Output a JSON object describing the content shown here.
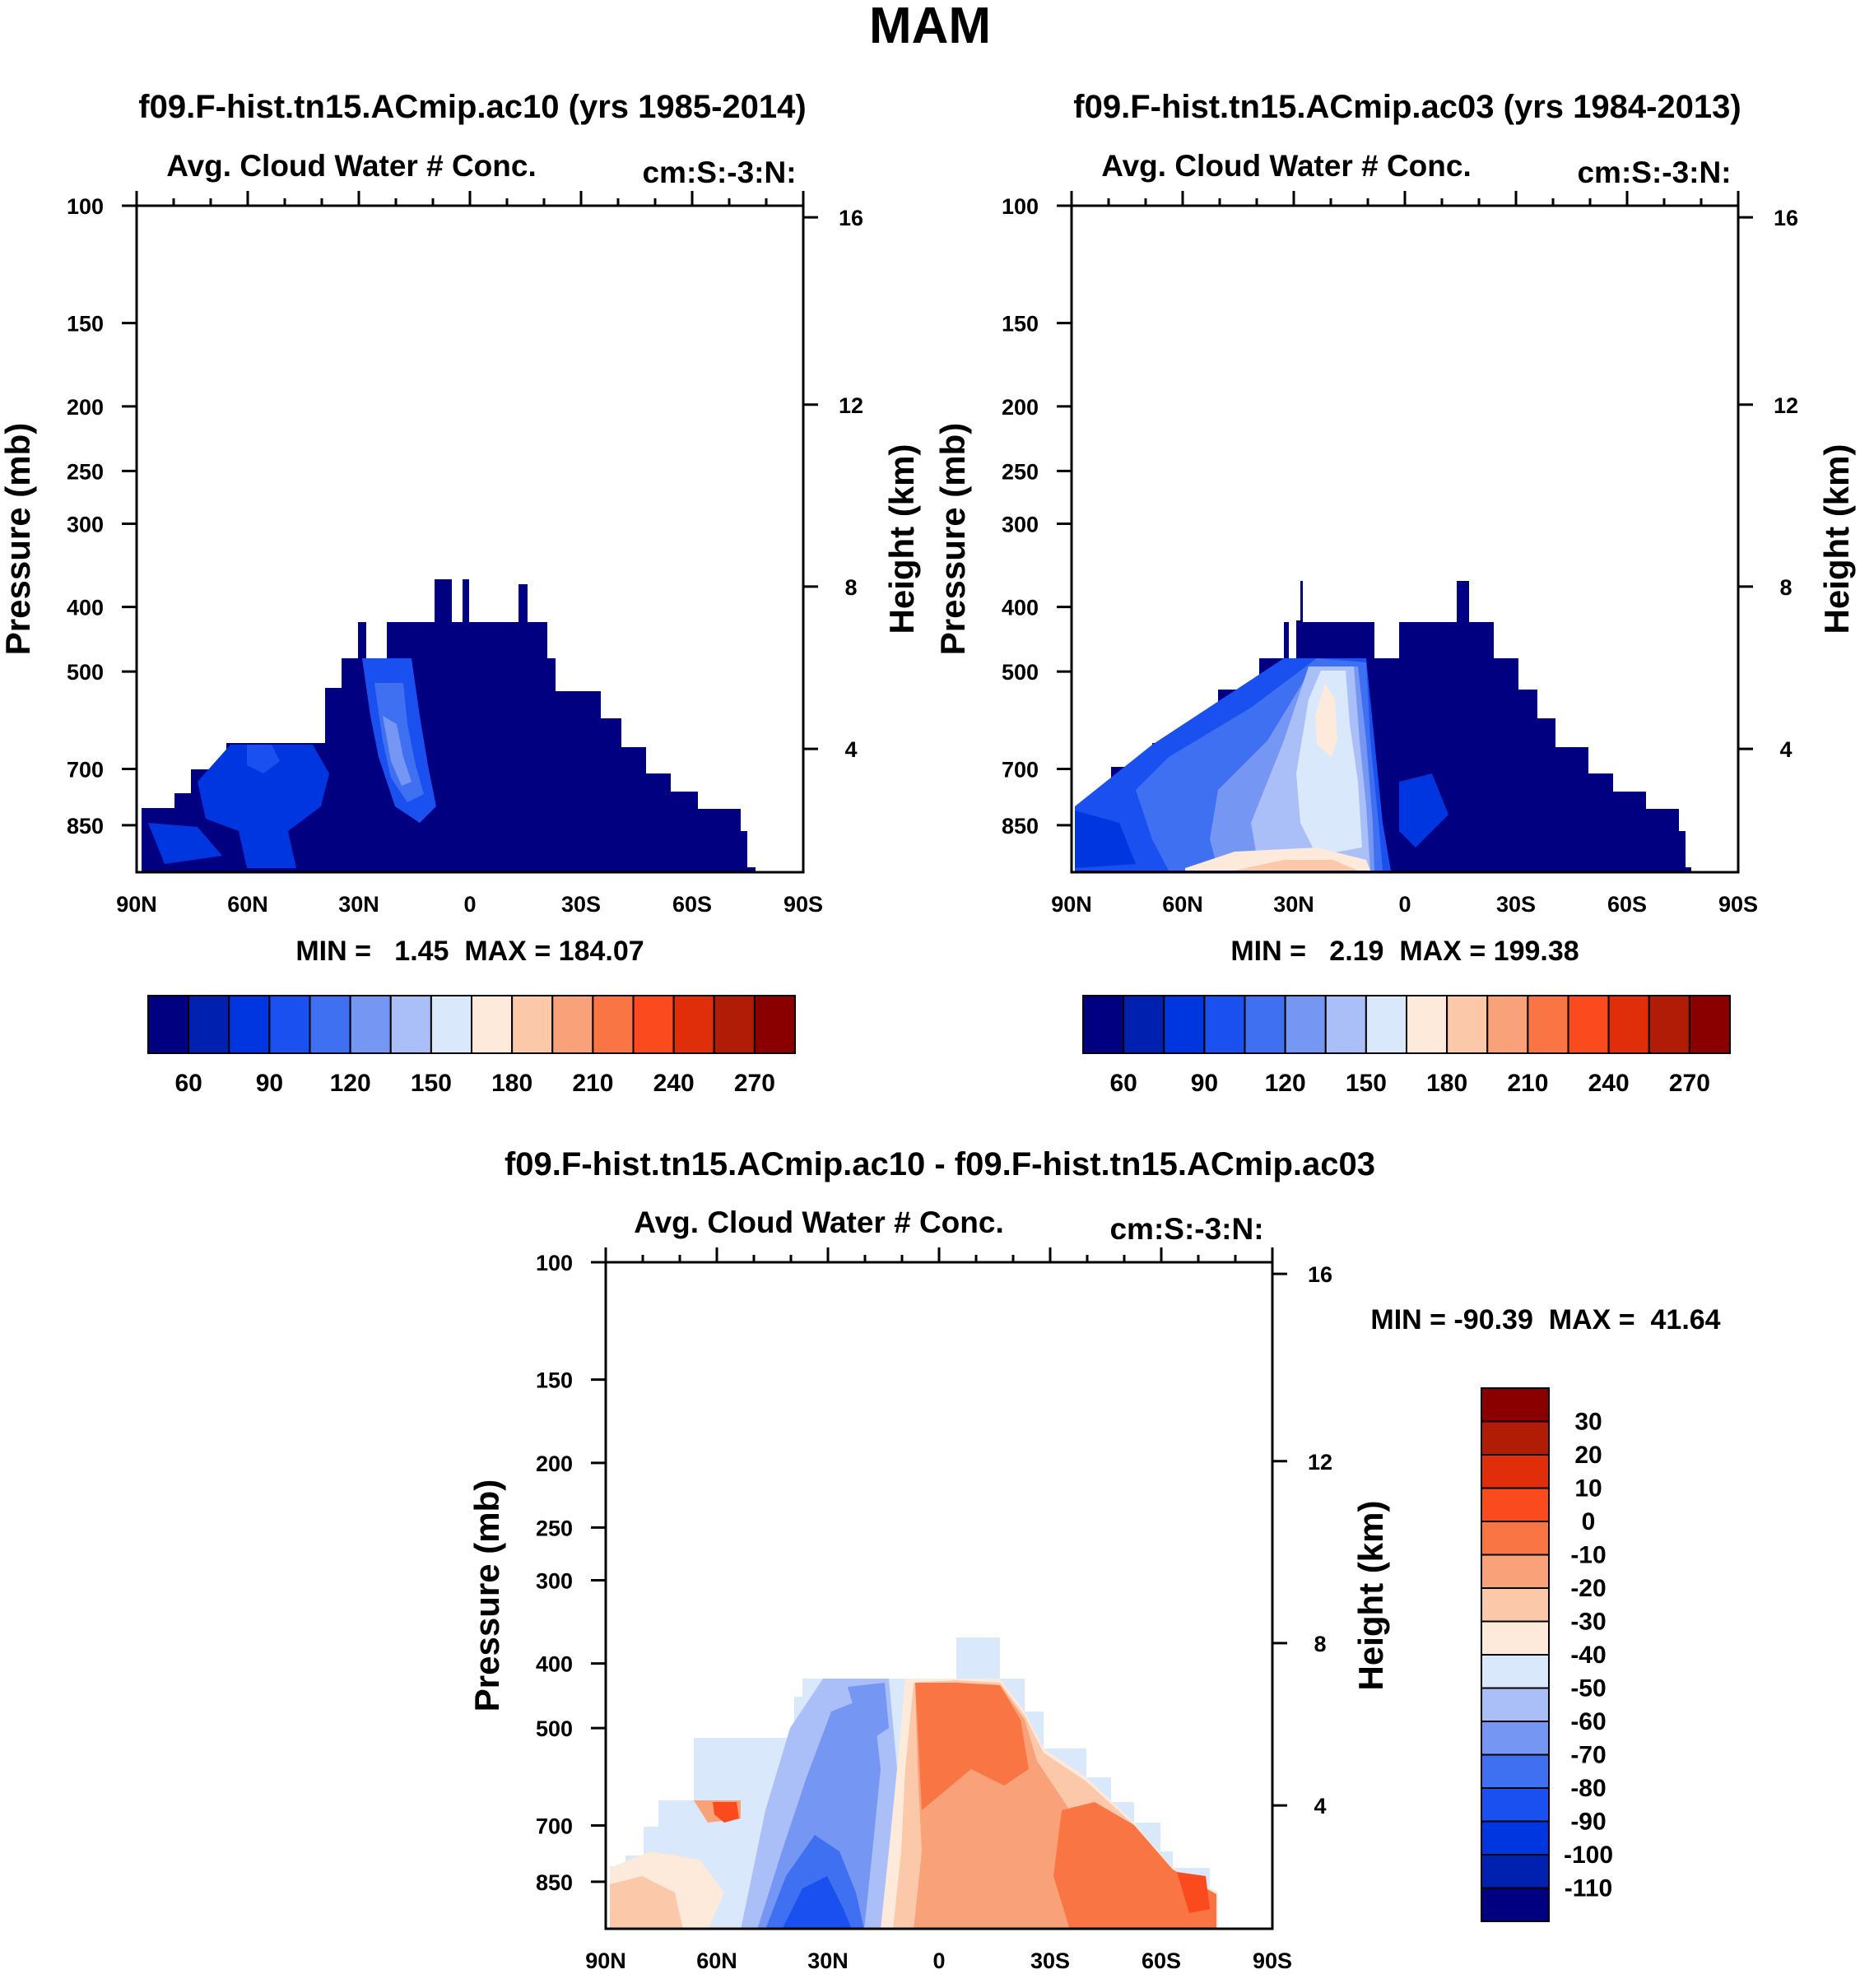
{
  "figure_title": "MAM",
  "chart_data": [
    {
      "type": "heatmap",
      "title": "f09.F-hist.tn15.ACmip.ac10 (yrs 1985-2014)",
      "subtitle_left": "Avg. Cloud Water # Conc.",
      "subtitle_right": "cm:S:-3:N:",
      "xlabel": "",
      "ylabel": "Pressure (mb)",
      "ylabel_right": "Height (km)",
      "x_ticks": [
        "90N",
        "60N",
        "30N",
        "0",
        "30S",
        "60S",
        "90S"
      ],
      "y_ticks": [
        "100",
        "150",
        "200",
        "250",
        "300",
        "400",
        "500",
        "700",
        "850"
      ],
      "y2_ticks": [
        "16",
        "12",
        "8",
        "4"
      ],
      "stats": "MIN =   1.45  MAX = 184.07",
      "colorbar_labels": [
        "60",
        "90",
        "120",
        "150",
        "180",
        "210",
        "240",
        "270"
      ],
      "colorbar_colors": [
        "#000080",
        "#0020b0",
        "#0036e0",
        "#1a50f0",
        "#3f70f2",
        "#7596f3",
        "#aabef8",
        "#d9e8fa",
        "#fdeadb",
        "#fbc8a9",
        "#f9a27a",
        "#f97543",
        "#fb4a1e",
        "#e02e0a",
        "#b01c06",
        "#8a0000"
      ]
    },
    {
      "type": "heatmap",
      "title": "f09.F-hist.tn15.ACmip.ac03 (yrs 1984-2013)",
      "subtitle_left": "Avg. Cloud Water # Conc.",
      "subtitle_right": "cm:S:-3:N:",
      "xlabel": "",
      "ylabel": "Pressure (mb)",
      "ylabel_right": "Height (km)",
      "x_ticks": [
        "90N",
        "60N",
        "30N",
        "0",
        "30S",
        "60S",
        "90S"
      ],
      "y_ticks": [
        "100",
        "150",
        "200",
        "250",
        "300",
        "400",
        "500",
        "700",
        "850"
      ],
      "y2_ticks": [
        "16",
        "12",
        "8",
        "4"
      ],
      "stats": "MIN =   2.19  MAX = 199.38",
      "colorbar_labels": [
        "60",
        "90",
        "120",
        "150",
        "180",
        "210",
        "240",
        "270"
      ],
      "colorbar_colors": [
        "#000080",
        "#0020b0",
        "#0036e0",
        "#1a50f0",
        "#3f70f2",
        "#7596f3",
        "#aabef8",
        "#d9e8fa",
        "#fdeadb",
        "#fbc8a9",
        "#f9a27a",
        "#f97543",
        "#fb4a1e",
        "#e02e0a",
        "#b01c06",
        "#8a0000"
      ]
    },
    {
      "type": "heatmap",
      "title": "f09.F-hist.tn15.ACmip.ac10 - f09.F-hist.tn15.ACmip.ac03",
      "subtitle_left": "Avg. Cloud Water # Conc.",
      "subtitle_right": "cm:S:-3:N:",
      "xlabel": "",
      "ylabel": "Pressure (mb)",
      "ylabel_right": "Height (km)",
      "x_ticks": [
        "90N",
        "60N",
        "30N",
        "0",
        "30S",
        "60S",
        "90S"
      ],
      "y_ticks": [
        "100",
        "150",
        "200",
        "250",
        "300",
        "400",
        "500",
        "700",
        "850"
      ],
      "y2_ticks": [
        "16",
        "12",
        "8",
        "4"
      ],
      "stats": "MIN = -90.39  MAX =  41.64",
      "colorbar_labels": [
        "30",
        "20",
        "10",
        "0",
        "-10",
        "-20",
        "-30",
        "-40",
        "-50",
        "-60",
        "-70",
        "-80",
        "-90",
        "-100",
        "-110"
      ],
      "colorbar_colors": [
        "#8a0000",
        "#b01c06",
        "#e02e0a",
        "#fb4a1e",
        "#f97543",
        "#f9a27a",
        "#fbc8a9",
        "#fdeadb",
        "#d9e8fa",
        "#aabef8",
        "#7596f3",
        "#3f70f2",
        "#1a50f0",
        "#0036e0",
        "#0020b0",
        "#000080"
      ]
    }
  ]
}
